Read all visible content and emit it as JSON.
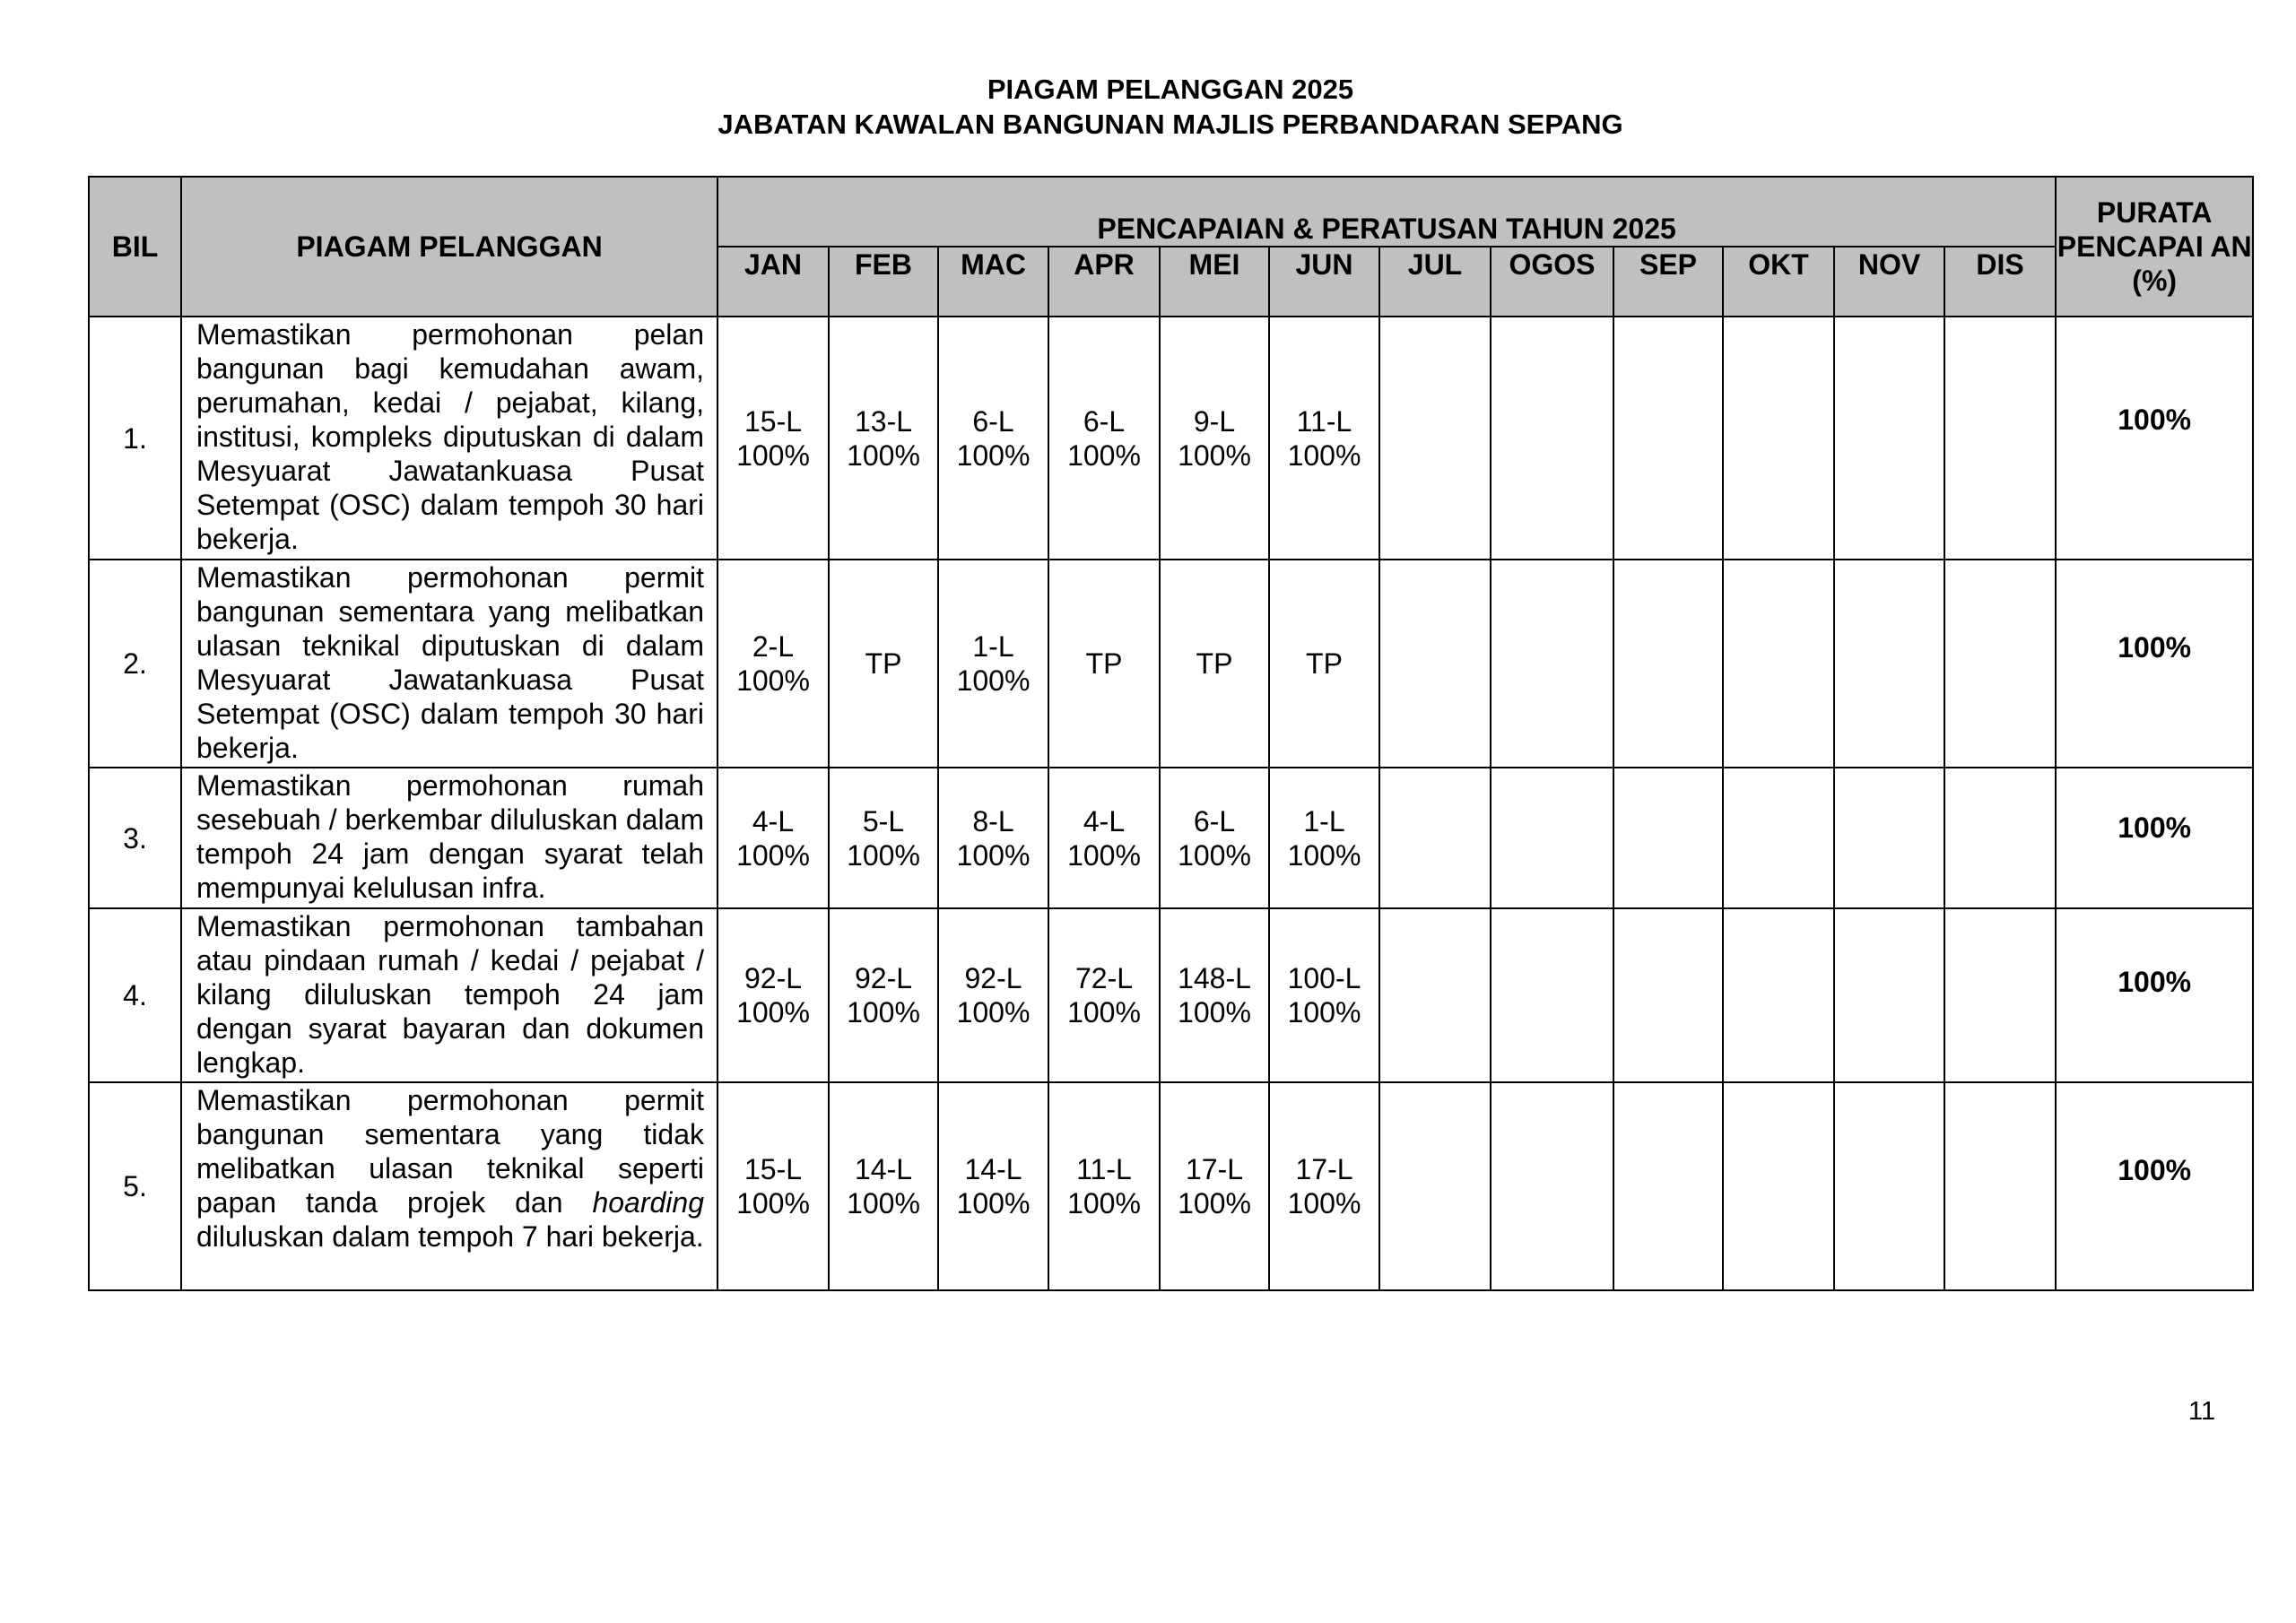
{
  "header": {
    "title": "PIAGAM PELANGGAN 2025",
    "subtitle": "JABATAN KAWALAN BANGUNAN MAJLIS PERBANDARAN SEPANG"
  },
  "table": {
    "col_bil": "BIL",
    "col_piagam": "PIAGAM PELANGGAN",
    "col_group": "PENCAPAIAN & PERATUSAN TAHUN 2025",
    "col_purata": "PURATA PENCAPAI AN (%)",
    "months": [
      "JAN",
      "FEB",
      "MAC",
      "APR",
      "MEI",
      "JUN",
      "JUL",
      "OGOS",
      "SEP",
      "OKT",
      "NOV",
      "DIS"
    ],
    "rows": [
      {
        "bil": "1.",
        "text": "Memastikan permohonan pelan bangunan bagi kemudahan awam, perumahan, kedai / pejabat, kilang, institusi, kompleks diputuskan di dalam Mesyuarat Jawatankuasa Pusat Setempat (OSC) dalam tempoh 30 hari bekerja.",
        "values": [
          [
            "15-L",
            "100%"
          ],
          [
            "13-L",
            "100%"
          ],
          [
            "6-L",
            "100%"
          ],
          [
            "6-L",
            "100%"
          ],
          [
            "9-L",
            "100%"
          ],
          [
            "11-L",
            "100%"
          ],
          [],
          [],
          [],
          [],
          [],
          []
        ],
        "purata": "100%"
      },
      {
        "bil": "2.",
        "text": "Memastikan permohonan permit bangunan sementara yang melibatkan ulasan teknikal diputuskan di dalam Mesyuarat Jawatankuasa Pusat Setempat (OSC) dalam tempoh 30 hari bekerja.",
        "values": [
          [
            "2-L",
            "100%"
          ],
          [
            "TP"
          ],
          [
            "1-L",
            "100%"
          ],
          [
            "TP"
          ],
          [
            "TP"
          ],
          [
            "TP"
          ],
          [],
          [],
          [],
          [],
          [],
          []
        ],
        "purata": "100%"
      },
      {
        "bil": "3.",
        "text": "Memastikan permohonan rumah sesebuah / berkembar diluluskan dalam tempoh 24 jam dengan syarat telah mempunyai kelulusan infra.",
        "values": [
          [
            "4-L",
            "100%"
          ],
          [
            "5-L",
            "100%"
          ],
          [
            "8-L",
            "100%"
          ],
          [
            "4-L",
            "100%"
          ],
          [
            "6-L",
            "100%"
          ],
          [
            "1-L",
            "100%"
          ],
          [],
          [],
          [],
          [],
          [],
          []
        ],
        "purata": "100%"
      },
      {
        "bil": "4.",
        "text": "Memastikan permohonan tambahan atau pindaan rumah / kedai / pejabat / kilang diluluskan tempoh 24 jam dengan syarat bayaran dan dokumen lengkap.",
        "values": [
          [
            "92-L",
            "100%"
          ],
          [
            "92-L",
            "100%"
          ],
          [
            "92-L",
            "100%"
          ],
          [
            "72-L",
            "100%"
          ],
          [
            "148-L",
            "100%"
          ],
          [
            "100-L",
            "100%"
          ],
          [],
          [],
          [],
          [],
          [],
          []
        ],
        "purata": "100%"
      },
      {
        "bil": "5.",
        "text_parts": [
          "Memastikan permohonan permit bangunan sementara yang tidak melibatkan ulasan teknikal seperti papan tanda projek dan ",
          "hoarding",
          " diluluskan dalam tempoh 7 hari bekerja."
        ],
        "values": [
          [
            "15-L",
            "100%"
          ],
          [
            "14-L",
            "100%"
          ],
          [
            "14-L",
            "100%"
          ],
          [
            "11-L",
            "100%"
          ],
          [
            "17-L",
            "100%"
          ],
          [
            "17-L",
            "100%"
          ],
          [],
          [],
          [],
          [],
          [],
          []
        ],
        "purata": "100%"
      }
    ]
  },
  "page_number": "11",
  "colors": {
    "header_bg": "#c0c0c0"
  }
}
